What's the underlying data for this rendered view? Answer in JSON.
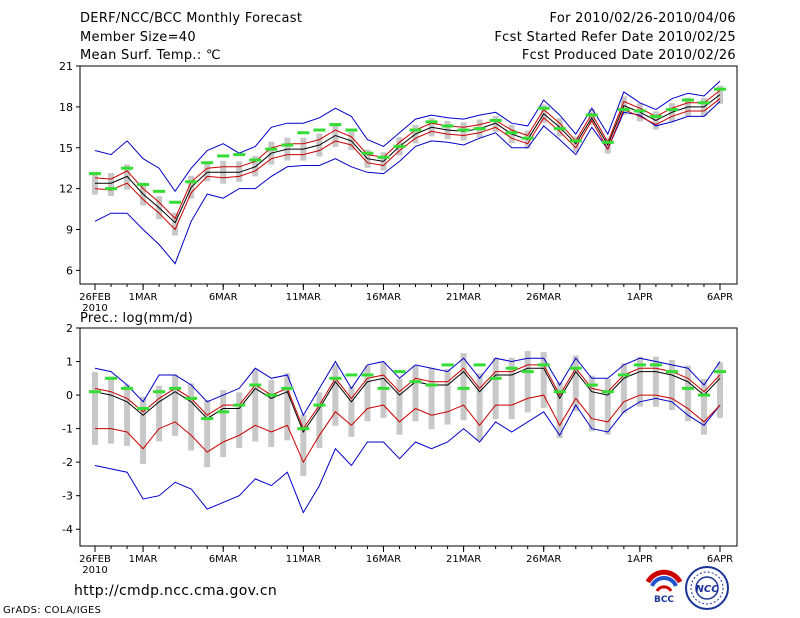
{
  "header": {
    "title": "DERF/NCC/BCC Monthly Forecast",
    "member_size": "Member Size=40",
    "variable": "Mean Surf. Temp.: ℃",
    "forecast_period": "For 2010/02/26-2010/04/06",
    "started_refer": "Fcst Started Refer Date 2010/02/25",
    "produced": "Fcst Produced Date 2010/02/26"
  },
  "footer": {
    "url": "http://cmdp.ncc.cma.gov.cn",
    "credit": "GrADS: COLA/IGES",
    "logo_left": "BCC",
    "logo_right": "NCC"
  },
  "colors": {
    "blue": "#0000cc",
    "red": "#cc0000",
    "black": "#000000",
    "green": "#33dd33",
    "gray_box": "#c8c8c8"
  },
  "chart_data": [
    {
      "type": "line",
      "title": "Mean Surf. Temp.: ℃",
      "ylim": [
        5,
        21
      ],
      "yticks": [
        6,
        9,
        12,
        15,
        18,
        21
      ],
      "day_range": [
        0,
        39
      ],
      "xticks": [
        {
          "day": 0,
          "label": "26FEB",
          "sub": "2010"
        },
        {
          "day": 3,
          "label": "1MAR"
        },
        {
          "day": 8,
          "label": "6MAR"
        },
        {
          "day": 13,
          "label": "11MAR"
        },
        {
          "day": 18,
          "label": "16MAR"
        },
        {
          "day": 23,
          "label": "21MAR"
        },
        {
          "day": 28,
          "label": "26MAR"
        },
        {
          "day": 34,
          "label": "1APR"
        },
        {
          "day": 39,
          "label": "6APR"
        }
      ],
      "series": [
        {
          "name": "max",
          "color": "#0000cc",
          "values": [
            14.8,
            14.5,
            15.5,
            14.2,
            13.5,
            11.8,
            13.5,
            14.8,
            15.3,
            14.6,
            15.1,
            16.5,
            16.8,
            16.8,
            17.2,
            17.9,
            17.3,
            15.6,
            15.1,
            16.1,
            17.1,
            17.4,
            17.2,
            17.1,
            17.4,
            17.6,
            16.8,
            16.6,
            18.5,
            17.4,
            16.0,
            17.9,
            16.0,
            19.1,
            18.3,
            17.8,
            18.6,
            19.0,
            18.8,
            19.9
          ]
        },
        {
          "name": "upper",
          "color": "#cc0000",
          "values": [
            12.8,
            12.7,
            13.3,
            12.0,
            11.0,
            9.8,
            12.5,
            13.5,
            13.6,
            13.6,
            14.0,
            15.0,
            15.3,
            15.3,
            15.6,
            16.3,
            15.8,
            14.5,
            14.3,
            15.4,
            16.3,
            16.8,
            16.6,
            16.5,
            16.7,
            17.0,
            16.3,
            15.9,
            17.8,
            16.8,
            15.5,
            17.5,
            15.4,
            18.4,
            17.9,
            17.3,
            17.9,
            18.3,
            18.3,
            19.2
          ]
        },
        {
          "name": "mean",
          "color": "#000000",
          "values": [
            12.4,
            12.4,
            12.9,
            11.6,
            10.6,
            9.5,
            12.1,
            13.2,
            13.2,
            13.2,
            13.6,
            14.6,
            14.9,
            14.9,
            15.2,
            15.9,
            15.5,
            14.2,
            14.0,
            15.1,
            16.0,
            16.5,
            16.3,
            16.2,
            16.4,
            16.8,
            16.0,
            15.6,
            17.5,
            16.5,
            15.3,
            17.2,
            15.2,
            18.1,
            17.6,
            17.0,
            17.6,
            18.0,
            18.0,
            18.9
          ]
        },
        {
          "name": "lower",
          "color": "#cc0000",
          "values": [
            12.0,
            11.9,
            12.4,
            11.2,
            10.2,
            9.0,
            11.7,
            12.9,
            12.8,
            12.9,
            13.3,
            14.2,
            14.5,
            14.5,
            14.8,
            15.5,
            15.2,
            13.9,
            13.7,
            14.8,
            15.7,
            16.2,
            16.0,
            15.9,
            16.1,
            16.5,
            15.7,
            15.3,
            17.2,
            16.2,
            15.0,
            17.0,
            14.9,
            17.8,
            17.3,
            16.7,
            17.3,
            17.7,
            17.7,
            18.6
          ]
        },
        {
          "name": "min",
          "color": "#0000cc",
          "values": [
            9.6,
            10.2,
            10.2,
            9.0,
            7.9,
            6.5,
            9.6,
            11.6,
            11.3,
            12.0,
            12.0,
            12.9,
            13.6,
            13.7,
            13.7,
            14.2,
            13.6,
            13.2,
            13.1,
            14.0,
            15.1,
            15.5,
            15.4,
            15.2,
            15.7,
            16.1,
            15.0,
            15.0,
            16.6,
            15.6,
            14.5,
            16.5,
            14.9,
            17.6,
            17.4,
            16.6,
            16.9,
            17.3,
            17.3,
            18.4
          ]
        },
        {
          "name": "observed",
          "color": "#33dd33",
          "values": [
            13.1,
            12.0,
            13.5,
            12.3,
            11.8,
            11.0,
            12.5,
            13.9,
            14.4,
            14.5,
            14.1,
            14.9,
            15.2,
            16.1,
            16.3,
            16.7,
            16.3,
            14.6,
            14.3,
            15.1,
            16.3,
            16.9,
            16.6,
            16.3,
            16.4,
            17.0,
            16.1,
            15.7,
            17.9,
            16.4,
            15.5,
            17.4,
            15.4,
            17.8,
            17.7,
            17.3,
            17.8,
            18.5,
            18.3,
            19.3
          ]
        }
      ]
    },
    {
      "type": "line",
      "title": "Prec.: log(mm/d)",
      "ylim": [
        -4.5,
        2
      ],
      "yticks": [
        -4,
        -3,
        -2,
        -1,
        0,
        1,
        2
      ],
      "day_range": [
        0,
        39
      ],
      "xticks": [
        {
          "day": 0,
          "label": "26FEB",
          "sub": "2010"
        },
        {
          "day": 3,
          "label": "1MAR"
        },
        {
          "day": 8,
          "label": "6MAR"
        },
        {
          "day": 13,
          "label": "11MAR"
        },
        {
          "day": 18,
          "label": "16MAR"
        },
        {
          "day": 23,
          "label": "21MAR"
        },
        {
          "day": 28,
          "label": "26MAR"
        },
        {
          "day": 34,
          "label": "1APR"
        },
        {
          "day": 39,
          "label": "6APR"
        }
      ],
      "series": [
        {
          "name": "max",
          "color": "#0000cc",
          "values": [
            0.8,
            0.7,
            0.3,
            -0.2,
            0.6,
            0.6,
            0.3,
            -0.2,
            0.0,
            0.2,
            0.8,
            0.5,
            0.6,
            -0.6,
            0.2,
            1.0,
            0.2,
            0.9,
            1.0,
            0.5,
            0.9,
            0.8,
            0.7,
            1.1,
            0.5,
            1.1,
            1.0,
            1.1,
            1.1,
            0.3,
            1.1,
            0.5,
            0.5,
            0.9,
            1.1,
            1.0,
            0.9,
            0.8,
            0.3,
            1.0
          ]
        },
        {
          "name": "upper",
          "color": "#cc0000",
          "values": [
            0.2,
            0.1,
            -0.1,
            -0.5,
            -0.1,
            0.2,
            -0.1,
            -0.6,
            -0.3,
            -0.3,
            0.3,
            0.0,
            0.2,
            -1.0,
            -0.3,
            0.5,
            -0.1,
            0.5,
            0.6,
            0.1,
            0.5,
            0.4,
            0.4,
            0.8,
            0.2,
            0.7,
            0.7,
            0.9,
            0.9,
            0.0,
            0.8,
            0.2,
            0.1,
            0.6,
            0.8,
            0.8,
            0.7,
            0.5,
            0.1,
            0.6
          ]
        },
        {
          "name": "mean",
          "color": "#000000",
          "values": [
            0.1,
            0.0,
            -0.2,
            -0.6,
            -0.2,
            0.1,
            -0.2,
            -0.7,
            -0.4,
            -0.4,
            0.2,
            -0.1,
            0.1,
            -1.1,
            -0.4,
            0.4,
            -0.2,
            0.4,
            0.5,
            0.0,
            0.4,
            0.3,
            0.3,
            0.7,
            0.1,
            0.6,
            0.6,
            0.8,
            0.8,
            -0.1,
            0.7,
            0.1,
            0.0,
            0.5,
            0.7,
            0.7,
            0.6,
            0.4,
            0.0,
            0.5
          ]
        },
        {
          "name": "lower",
          "color": "#cc0000",
          "values": [
            -1.0,
            -1.0,
            -1.1,
            -1.6,
            -1.0,
            -0.8,
            -1.2,
            -1.7,
            -1.4,
            -1.2,
            -0.9,
            -1.1,
            -0.9,
            -2.0,
            -1.2,
            -0.5,
            -0.9,
            -0.4,
            -0.3,
            -0.8,
            -0.4,
            -0.6,
            -0.5,
            -0.3,
            -0.9,
            -0.3,
            -0.3,
            -0.1,
            0.0,
            -0.9,
            -0.1,
            -0.7,
            -0.8,
            -0.2,
            0.0,
            0.0,
            -0.1,
            -0.4,
            -0.8,
            -0.3
          ]
        },
        {
          "name": "min",
          "color": "#0000cc",
          "values": [
            -2.1,
            -2.2,
            -2.3,
            -3.1,
            -3.0,
            -2.6,
            -2.8,
            -3.4,
            -3.2,
            -3.0,
            -2.5,
            -2.7,
            -2.3,
            -3.5,
            -2.7,
            -1.6,
            -2.1,
            -1.4,
            -1.4,
            -1.9,
            -1.4,
            -1.6,
            -1.4,
            -1.0,
            -1.4,
            -0.8,
            -1.1,
            -0.8,
            -0.5,
            -1.2,
            -0.3,
            -1.0,
            -1.1,
            -0.5,
            -0.2,
            -0.1,
            -0.2,
            -0.6,
            -0.9,
            -0.3
          ]
        },
        {
          "name": "observed",
          "color": "#33dd33",
          "values": [
            0.1,
            0.5,
            0.2,
            -0.4,
            0.1,
            0.2,
            -0.1,
            -0.7,
            -0.5,
            -0.3,
            0.3,
            0.0,
            0.2,
            -1.0,
            -0.3,
            0.5,
            0.6,
            0.6,
            0.2,
            0.7,
            0.4,
            0.3,
            0.9,
            0.2,
            0.9,
            0.5,
            0.8,
            0.7,
            0.9,
            0.1,
            0.8,
            0.3,
            0.1,
            0.6,
            0.9,
            0.9,
            0.7,
            0.2,
            0.0,
            0.7
          ]
        }
      ]
    }
  ]
}
